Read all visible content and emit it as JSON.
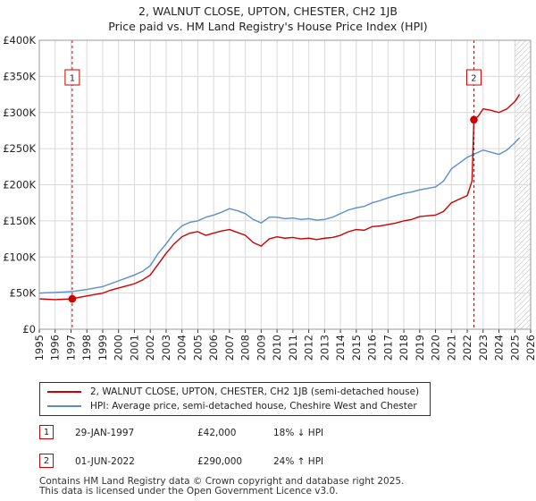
{
  "title_line1": "2, WALNUT CLOSE, UPTON, CHESTER, CH2 1JB",
  "title_line2": "Price paid vs. HM Land Registry's House Price Index (HPI)",
  "legend": {
    "property": "2, WALNUT CLOSE, UPTON, CHESTER, CH2 1JB (semi-detached house)",
    "hpi": "HPI: Average price, semi-detached house, Cheshire West and Chester"
  },
  "sales": [
    {
      "badge": "1",
      "date": "29-JAN-1997",
      "price": "£42,000",
      "delta": "18% ↓ HPI"
    },
    {
      "badge": "2",
      "date": "01-JUN-2022",
      "price": "£290,000",
      "delta": "24% ↑ HPI"
    }
  ],
  "footer_line1": "Contains HM Land Registry data © Crown copyright and database right 2025.",
  "footer_line2": "This data is licensed under the Open Government Licence v3.0.",
  "colors": {
    "property": "#cc0000",
    "hpi": "#5b8ec8",
    "marker_line": "#cc0000",
    "hatch": "#bbbbbb",
    "grid": "#d9d9d9"
  },
  "chart_data": {
    "type": "line",
    "xlim": [
      1995,
      2026
    ],
    "ylim": [
      0,
      400000
    ],
    "yticks": [
      {
        "v": 0,
        "label": "£0"
      },
      {
        "v": 50000,
        "label": "£50K"
      },
      {
        "v": 100000,
        "label": "£100K"
      },
      {
        "v": 150000,
        "label": "£150K"
      },
      {
        "v": 200000,
        "label": "£200K"
      },
      {
        "v": 250000,
        "label": "£250K"
      },
      {
        "v": 300000,
        "label": "£300K"
      },
      {
        "v": 350000,
        "label": "£350K"
      },
      {
        "v": 400000,
        "label": "£400K"
      }
    ],
    "xticks": [
      "1995",
      "1996",
      "1997",
      "1998",
      "1999",
      "2000",
      "2001",
      "2002",
      "2003",
      "2004",
      "2005",
      "2006",
      "2007",
      "2008",
      "2009",
      "2010",
      "2011",
      "2012",
      "2013",
      "2014",
      "2015",
      "2016",
      "2017",
      "2018",
      "2019",
      "2020",
      "2021",
      "2022",
      "2023",
      "2024",
      "2025",
      "2026"
    ],
    "hatch_from": 2025.0,
    "series": [
      {
        "name": "2, WALNUT CLOSE, UPTON, CHESTER, CH2 1JB (semi-detached house)",
        "key": "property",
        "x": [
          1995.0,
          1995.5,
          1996.0,
          1996.5,
          1997.08,
          1997.5,
          1998.0,
          1998.5,
          1999.0,
          1999.5,
          2000.0,
          2000.5,
          2001.0,
          2001.5,
          2002.0,
          2002.5,
          2003.0,
          2003.5,
          2004.0,
          2004.5,
          2005.0,
          2005.5,
          2006.0,
          2006.5,
          2007.0,
          2007.5,
          2008.0,
          2008.5,
          2009.0,
          2009.5,
          2010.0,
          2010.5,
          2011.0,
          2011.5,
          2012.0,
          2012.5,
          2013.0,
          2013.5,
          2014.0,
          2014.5,
          2015.0,
          2015.5,
          2016.0,
          2016.5,
          2017.0,
          2017.5,
          2018.0,
          2018.5,
          2019.0,
          2019.5,
          2020.0,
          2020.5,
          2021.0,
          2021.5,
          2022.0,
          2022.3,
          2022.42,
          2022.7,
          2023.0,
          2023.5,
          2024.0,
          2024.5,
          2025.0,
          2025.3
        ],
        "values": [
          42000,
          41500,
          41000,
          41500,
          42000,
          44000,
          46000,
          48000,
          50000,
          54000,
          57000,
          60000,
          63000,
          68000,
          75000,
          90000,
          105000,
          118000,
          128000,
          133000,
          135000,
          130000,
          133000,
          136000,
          138000,
          134000,
          130000,
          120000,
          115000,
          125000,
          128000,
          126000,
          127000,
          125000,
          126000,
          124000,
          126000,
          127000,
          130000,
          135000,
          138000,
          137000,
          142000,
          143000,
          145000,
          147000,
          150000,
          152000,
          156000,
          157000,
          158000,
          163000,
          175000,
          180000,
          185000,
          205000,
          290000,
          295000,
          305000,
          303000,
          300000,
          305000,
          315000,
          325000
        ]
      },
      {
        "name": "HPI: Average price, semi-detached house, Cheshire West and Chester",
        "key": "hpi",
        "x": [
          1995.0,
          1995.5,
          1996.0,
          1996.5,
          1997.0,
          1997.5,
          1998.0,
          1998.5,
          1999.0,
          1999.5,
          2000.0,
          2000.5,
          2001.0,
          2001.5,
          2002.0,
          2002.5,
          2003.0,
          2003.5,
          2004.0,
          2004.5,
          2005.0,
          2005.5,
          2006.0,
          2006.5,
          2007.0,
          2007.5,
          2008.0,
          2008.5,
          2009.0,
          2009.5,
          2010.0,
          2010.5,
          2011.0,
          2011.5,
          2012.0,
          2012.5,
          2013.0,
          2013.5,
          2014.0,
          2014.5,
          2015.0,
          2015.5,
          2016.0,
          2016.5,
          2017.0,
          2017.5,
          2018.0,
          2018.5,
          2019.0,
          2019.5,
          2020.0,
          2020.5,
          2021.0,
          2021.5,
          2022.0,
          2022.5,
          2023.0,
          2023.5,
          2024.0,
          2024.5,
          2025.0,
          2025.3
        ],
        "values": [
          50000,
          50500,
          51000,
          51500,
          52000,
          53500,
          55000,
          57000,
          59000,
          63000,
          67000,
          71000,
          75000,
          80000,
          88000,
          105000,
          118000,
          133000,
          143000,
          148000,
          150000,
          155000,
          158000,
          162000,
          167000,
          164000,
          160000,
          152000,
          147000,
          155000,
          155000,
          153000,
          154000,
          152000,
          153000,
          151000,
          152000,
          155000,
          160000,
          165000,
          168000,
          170000,
          175000,
          178000,
          182000,
          185000,
          188000,
          190000,
          193000,
          195000,
          197000,
          205000,
          222000,
          230000,
          238000,
          243000,
          248000,
          245000,
          242000,
          248000,
          258000,
          265000
        ]
      }
    ],
    "sale_markers": [
      {
        "label": "1",
        "x": 1997.08,
        "value": 42000
      },
      {
        "label": "2",
        "x": 2022.42,
        "value": 290000
      }
    ]
  }
}
